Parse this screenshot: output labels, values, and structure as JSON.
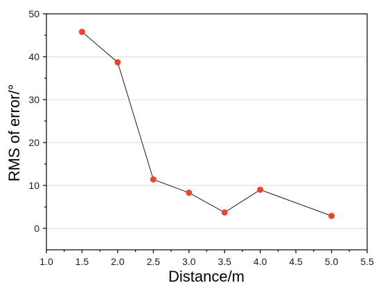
{
  "chart_data": {
    "type": "line",
    "xlabel": "Distance/m",
    "ylabel": "RMS of error/°",
    "xlim": [
      1.0,
      5.5
    ],
    "ylim": [
      -5,
      50
    ],
    "x_ticks": [
      "1.0",
      "1.5",
      "2.0",
      "2.5",
      "3.0",
      "3.5",
      "4.0",
      "4.5",
      "5.0",
      "5.5"
    ],
    "y_ticks": [
      "0",
      "10",
      "20",
      "30",
      "40",
      "50"
    ],
    "grid": true,
    "legend": "none",
    "series": [
      {
        "x": [
          1.5,
          2.0,
          2.5,
          3.0,
          3.5,
          4.0,
          5.0
        ],
        "values": [
          45.8,
          38.7,
          11.4,
          8.3,
          3.7,
          9.0,
          2.9
        ]
      }
    ],
    "colors": {
      "marker": "#f0412b",
      "line": "#1a1a1a",
      "grid": "#d8d8d8"
    }
  }
}
